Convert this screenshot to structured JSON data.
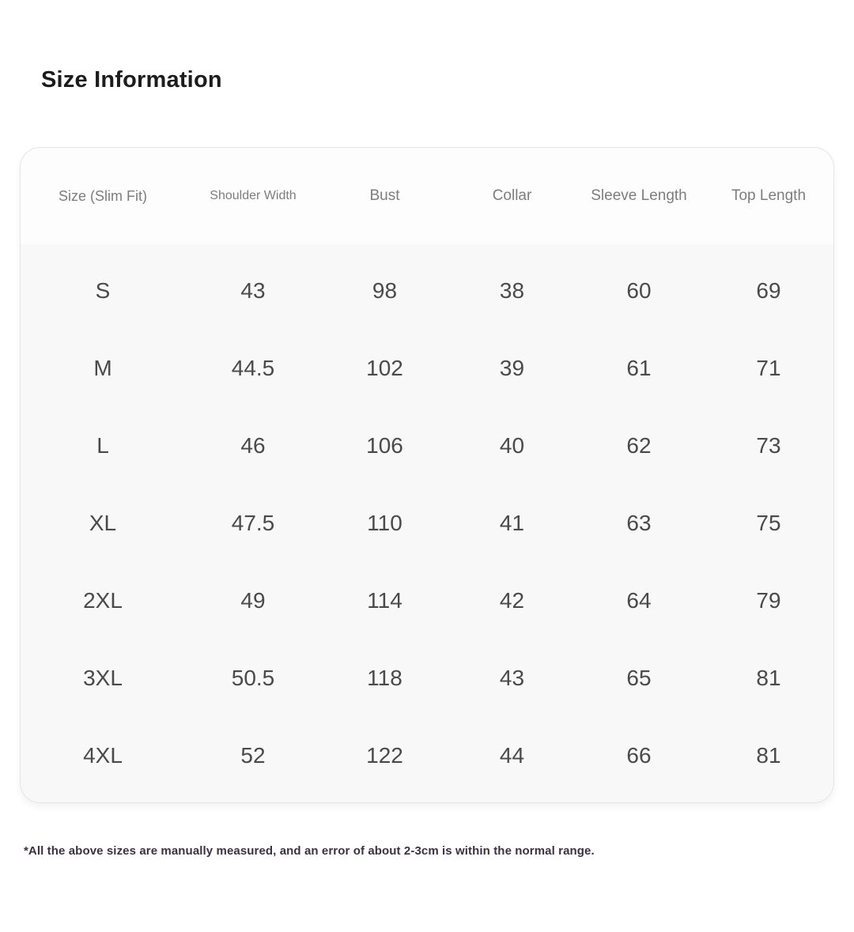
{
  "page": {
    "title": "Size Information",
    "footnote": "*All the above sizes are manually measured, and an error of about 2-3cm is within the normal range."
  },
  "table": {
    "columns": [
      "Size (Slim Fit)",
      "Shoulder Width",
      "Bust",
      "Collar",
      "Sleeve Length",
      "Top Length"
    ],
    "rows": [
      [
        "S",
        "43",
        "98",
        "38",
        "60",
        "69"
      ],
      [
        "M",
        "44.5",
        "102",
        "39",
        "61",
        "71"
      ],
      [
        "L",
        "46",
        "106",
        "40",
        "62",
        "73"
      ],
      [
        "XL",
        "47.5",
        "110",
        "41",
        "63",
        "75"
      ],
      [
        "2XL",
        "49",
        "114",
        "42",
        "64",
        "79"
      ],
      [
        "3XL",
        "50.5",
        "118",
        "43",
        "65",
        "81"
      ],
      [
        "4XL",
        "52",
        "122",
        "44",
        "66",
        "81"
      ]
    ]
  },
  "colors": {
    "header_text": "#7d7d7d",
    "cell_text": "#4a4a4a",
    "title_text": "#1c1c1c",
    "footnote_text": "#3a3145",
    "table_body_background": "#f8f8f8",
    "table_header_background": "#fdfdfd",
    "card_border": "#e4e4e4"
  }
}
